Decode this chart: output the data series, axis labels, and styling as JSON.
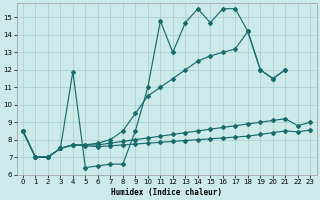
{
  "xlabel": "Humidex (Indice chaleur)",
  "background_color": "#cceaea",
  "grid_color": "#aacccc",
  "line_color": "#1a6b6b",
  "xlim": [
    -0.5,
    23.5
  ],
  "ylim": [
    6,
    15.8
  ],
  "yticks": [
    6,
    7,
    8,
    9,
    10,
    11,
    12,
    13,
    14,
    15
  ],
  "xticks": [
    0,
    1,
    2,
    3,
    4,
    5,
    6,
    7,
    8,
    9,
    10,
    11,
    12,
    13,
    14,
    15,
    16,
    17,
    18,
    19,
    20,
    21,
    22,
    23
  ],
  "line1_x": [
    0,
    1,
    2,
    3,
    4,
    5,
    6,
    7,
    8,
    9,
    10,
    11,
    12,
    13,
    14,
    15,
    16,
    17,
    18,
    19,
    20,
    21
  ],
  "line1_y": [
    8.5,
    7.0,
    7.0,
    7.5,
    11.9,
    6.4,
    6.5,
    6.6,
    6.6,
    8.5,
    11.0,
    14.8,
    13.0,
    14.7,
    15.5,
    14.7,
    15.5,
    15.5,
    14.2,
    12.0,
    11.5,
    12.0
  ],
  "line2_x": [
    0,
    1,
    2,
    3,
    4,
    5,
    6,
    7,
    8,
    9,
    10,
    11,
    12,
    13,
    14,
    15,
    16,
    17,
    18,
    19,
    20,
    21
  ],
  "line2_y": [
    8.5,
    7.0,
    7.0,
    7.5,
    7.7,
    7.7,
    7.8,
    8.0,
    8.5,
    9.5,
    10.5,
    11.0,
    11.5,
    12.0,
    12.5,
    12.8,
    13.0,
    13.2,
    14.2,
    12.0,
    11.5,
    12.0
  ],
  "line3_x": [
    0,
    1,
    2,
    3,
    4,
    5,
    6,
    7,
    8,
    9,
    10,
    11,
    12,
    13,
    14,
    15,
    16,
    17,
    18,
    19,
    20,
    21,
    22,
    23
  ],
  "line3_y": [
    8.5,
    7.0,
    7.0,
    7.5,
    7.7,
    7.7,
    7.7,
    7.8,
    7.9,
    8.0,
    8.1,
    8.2,
    8.3,
    8.4,
    8.5,
    8.6,
    8.7,
    8.8,
    8.9,
    9.0,
    9.1,
    9.2,
    8.8,
    9.0
  ],
  "line4_x": [
    0,
    1,
    2,
    3,
    4,
    5,
    6,
    7,
    8,
    9,
    10,
    11,
    12,
    13,
    14,
    15,
    16,
    17,
    18,
    19,
    20,
    21,
    22,
    23
  ],
  "line4_y": [
    8.5,
    7.0,
    7.0,
    7.5,
    7.7,
    7.65,
    7.6,
    7.65,
    7.7,
    7.75,
    7.8,
    7.85,
    7.9,
    7.95,
    8.0,
    8.05,
    8.1,
    8.15,
    8.2,
    8.3,
    8.4,
    8.5,
    8.45,
    8.55
  ]
}
